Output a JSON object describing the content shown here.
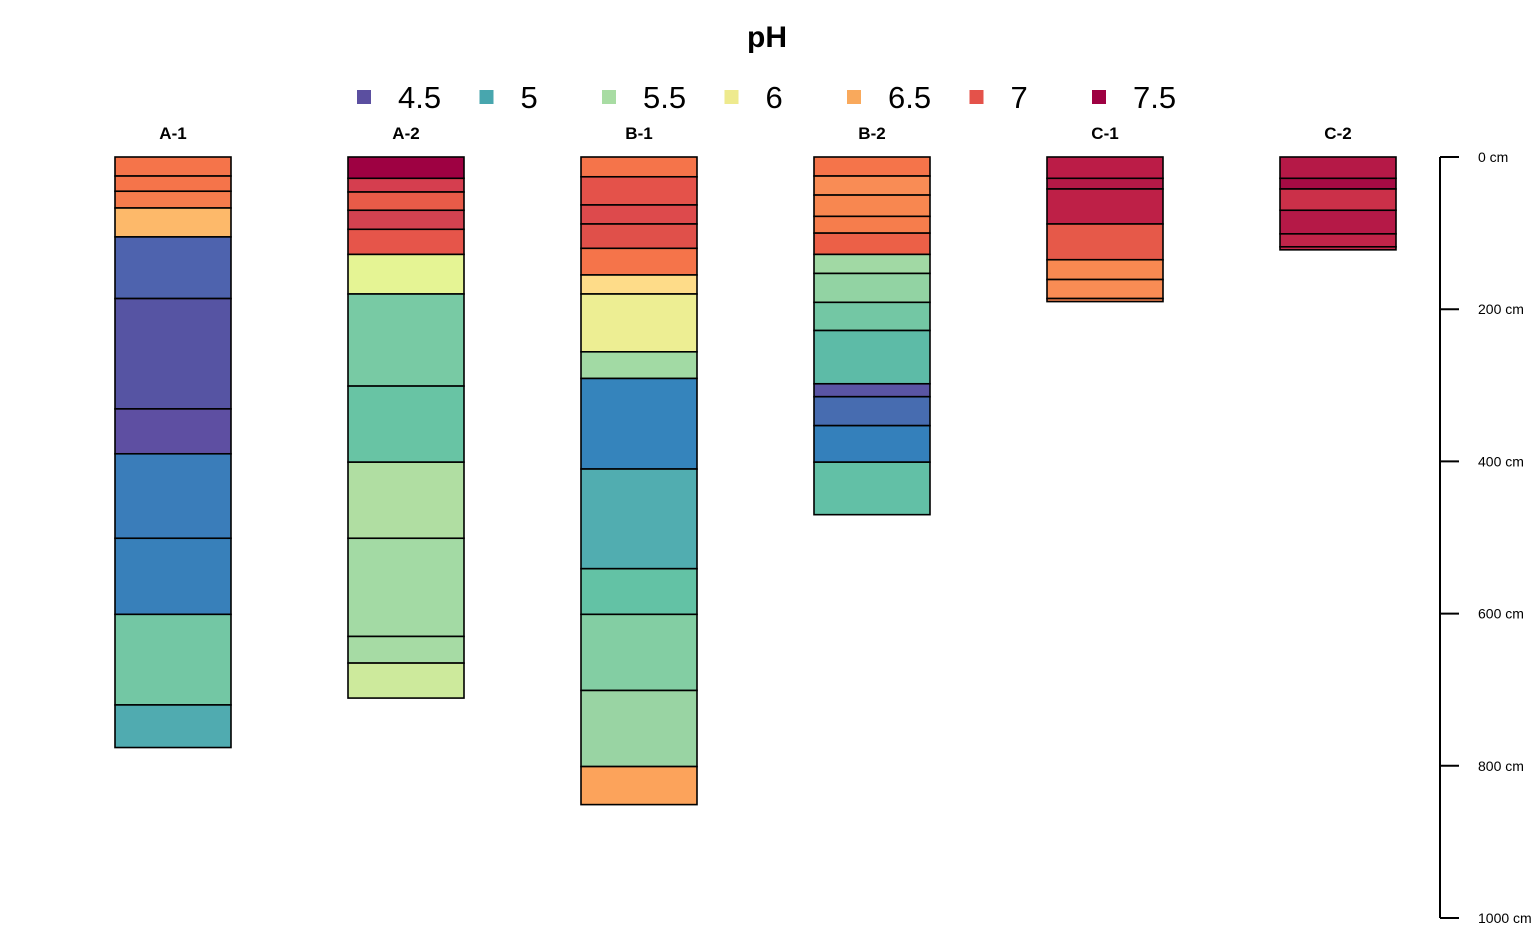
{
  "chart_data": {
    "type": "soil-profile",
    "title": "pH",
    "legend": {
      "entries": [
        {
          "label": "4.5",
          "color": "#5B4FA0"
        },
        {
          "label": "5",
          "color": "#48A6AE"
        },
        {
          "label": "5.5",
          "color": "#A8DCA3"
        },
        {
          "label": "6",
          "color": "#EEEA8E"
        },
        {
          "label": "6.5",
          "color": "#F9A95C"
        },
        {
          "label": "7",
          "color": "#E4524A"
        },
        {
          "label": "7.5",
          "color": "#9E0142"
        }
      ]
    },
    "depth_axis": {
      "range": [
        0,
        1000
      ],
      "ticks": [
        {
          "value": 0,
          "label": "0 cm"
        },
        {
          "value": 200,
          "label": "200 cm"
        },
        {
          "value": 400,
          "label": "400 cm"
        },
        {
          "value": 600,
          "label": "600 cm"
        },
        {
          "value": 800,
          "label": "800 cm"
        },
        {
          "value": 1000,
          "label": "1000 cm"
        }
      ]
    },
    "profiles": [
      {
        "id": "A-1",
        "horizons": [
          {
            "top": 0,
            "bottom": 25,
            "color": "#F5744A"
          },
          {
            "top": 25,
            "bottom": 45,
            "color": "#F5744A"
          },
          {
            "top": 45,
            "bottom": 67,
            "color": "#F67C4C"
          },
          {
            "top": 67,
            "bottom": 105,
            "color": "#FDB96A"
          },
          {
            "top": 105,
            "bottom": 186,
            "color": "#4E63AE"
          },
          {
            "top": 186,
            "bottom": 331,
            "color": "#5654A3"
          },
          {
            "top": 331,
            "bottom": 390,
            "color": "#5E4FA2"
          },
          {
            "top": 390,
            "bottom": 501,
            "color": "#3A7DBA"
          },
          {
            "top": 501,
            "bottom": 601,
            "color": "#3880BA"
          },
          {
            "top": 601,
            "bottom": 720,
            "color": "#73C7A4"
          },
          {
            "top": 720,
            "bottom": 776,
            "color": "#50ABB0"
          }
        ]
      },
      {
        "id": "A-2",
        "horizons": [
          {
            "top": 0,
            "bottom": 28,
            "color": "#9E0142"
          },
          {
            "top": 28,
            "bottom": 46,
            "color": "#D53E4F"
          },
          {
            "top": 46,
            "bottom": 70,
            "color": "#E85B48"
          },
          {
            "top": 70,
            "bottom": 95,
            "color": "#D34250"
          },
          {
            "top": 95,
            "bottom": 128,
            "color": "#E6554A"
          },
          {
            "top": 128,
            "bottom": 180,
            "color": "#E5F494"
          },
          {
            "top": 180,
            "bottom": 301,
            "color": "#78CAA4"
          },
          {
            "top": 301,
            "bottom": 401,
            "color": "#68C4A4"
          },
          {
            "top": 401,
            "bottom": 501,
            "color": "#B0DEA2"
          },
          {
            "top": 501,
            "bottom": 630,
            "color": "#A3DAA4"
          },
          {
            "top": 630,
            "bottom": 665,
            "color": "#A6DBA4"
          },
          {
            "top": 665,
            "bottom": 711,
            "color": "#CDEA9C"
          }
        ]
      },
      {
        "id": "B-1",
        "horizons": [
          {
            "top": 0,
            "bottom": 26,
            "color": "#F5744A"
          },
          {
            "top": 26,
            "bottom": 63,
            "color": "#E4524A"
          },
          {
            "top": 63,
            "bottom": 88,
            "color": "#DD4A4C"
          },
          {
            "top": 88,
            "bottom": 120,
            "color": "#E0504A"
          },
          {
            "top": 120,
            "bottom": 155,
            "color": "#F5744A"
          },
          {
            "top": 155,
            "bottom": 180,
            "color": "#FEDC89"
          },
          {
            "top": 180,
            "bottom": 256,
            "color": "#EDEE93"
          },
          {
            "top": 256,
            "bottom": 291,
            "color": "#A2DAA4"
          },
          {
            "top": 291,
            "bottom": 410,
            "color": "#3584BC"
          },
          {
            "top": 410,
            "bottom": 541,
            "color": "#51ADB0"
          },
          {
            "top": 541,
            "bottom": 601,
            "color": "#63C2A5"
          },
          {
            "top": 601,
            "bottom": 701,
            "color": "#83CEA3"
          },
          {
            "top": 701,
            "bottom": 801,
            "color": "#99D4A3"
          },
          {
            "top": 801,
            "bottom": 851,
            "color": "#FCA35B"
          }
        ]
      },
      {
        "id": "B-2",
        "horizons": [
          {
            "top": 0,
            "bottom": 25,
            "color": "#F5744A"
          },
          {
            "top": 25,
            "bottom": 50,
            "color": "#F98C55"
          },
          {
            "top": 50,
            "bottom": 78,
            "color": "#F88750"
          },
          {
            "top": 78,
            "bottom": 100,
            "color": "#F67D4C"
          },
          {
            "top": 100,
            "bottom": 128,
            "color": "#EC6047"
          },
          {
            "top": 128,
            "bottom": 153,
            "color": "#A1D9A4"
          },
          {
            "top": 153,
            "bottom": 191,
            "color": "#92D3A3"
          },
          {
            "top": 191,
            "bottom": 228,
            "color": "#73C7A4"
          },
          {
            "top": 228,
            "bottom": 298,
            "color": "#5DBBA7"
          },
          {
            "top": 298,
            "bottom": 315,
            "color": "#5A55A4"
          },
          {
            "top": 315,
            "bottom": 353,
            "color": "#476CB0"
          },
          {
            "top": 353,
            "bottom": 401,
            "color": "#3480BB"
          },
          {
            "top": 401,
            "bottom": 470,
            "color": "#62C0A6"
          }
        ]
      },
      {
        "id": "C-1",
        "horizons": [
          {
            "top": 0,
            "bottom": 28,
            "color": "#BB1C47"
          },
          {
            "top": 28,
            "bottom": 42,
            "color": "#B51947"
          },
          {
            "top": 42,
            "bottom": 88,
            "color": "#BE2047"
          },
          {
            "top": 88,
            "bottom": 135,
            "color": "#E65949"
          },
          {
            "top": 135,
            "bottom": 161,
            "color": "#F88951"
          },
          {
            "top": 161,
            "bottom": 186,
            "color": "#F98C54"
          },
          {
            "top": 186,
            "bottom": 190,
            "color": "#F78450"
          }
        ]
      },
      {
        "id": "C-2",
        "horizons": [
          {
            "top": 0,
            "bottom": 28,
            "color": "#B51947"
          },
          {
            "top": 28,
            "bottom": 42,
            "color": "#A60B44"
          },
          {
            "top": 42,
            "bottom": 70,
            "color": "#CB3049"
          },
          {
            "top": 70,
            "bottom": 101,
            "color": "#B51947"
          },
          {
            "top": 101,
            "bottom": 118,
            "color": "#C12449"
          },
          {
            "top": 118,
            "bottom": 122,
            "color": "#C42649"
          }
        ]
      }
    ]
  }
}
